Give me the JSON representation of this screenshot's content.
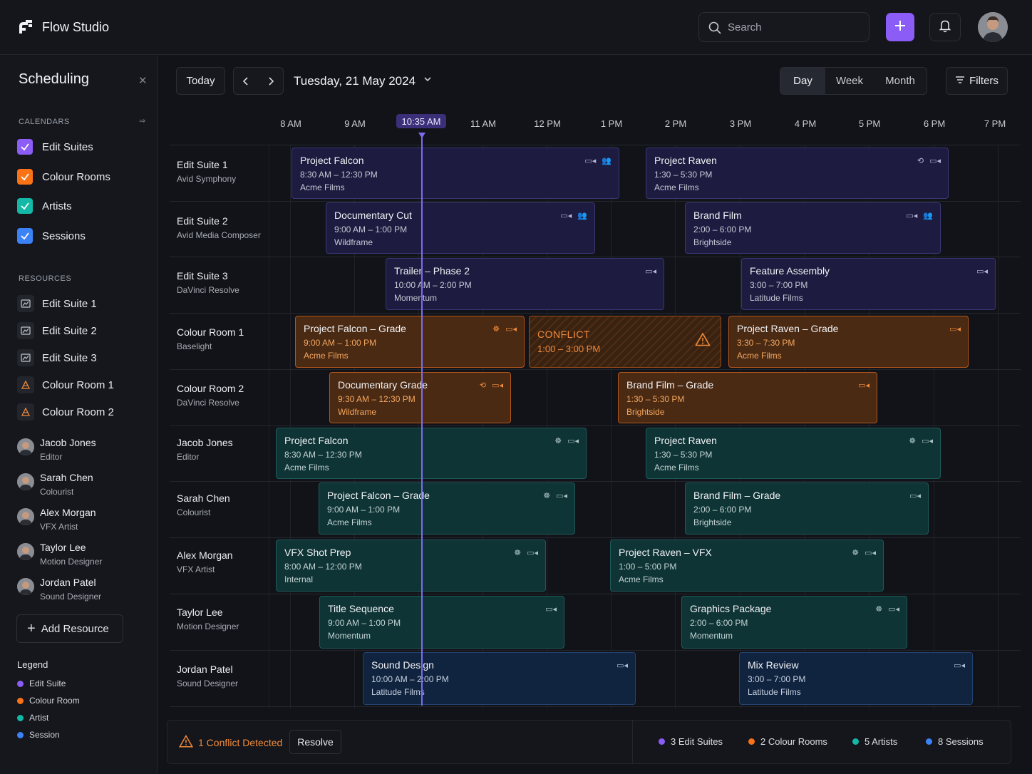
{
  "app": {
    "name": "Flow Studio"
  },
  "search": {
    "placeholder": "Search"
  },
  "sidebar": {
    "title": "Scheduling",
    "calendars_label": "CALENDARS",
    "calendars": [
      {
        "label": "Edit Suites",
        "color": "#8b5cf6"
      },
      {
        "label": "Colour Rooms",
        "color": "#f97316"
      },
      {
        "label": "Artists",
        "color": "#14b8a6"
      },
      {
        "label": "Sessions",
        "color": "#3b82f6"
      }
    ],
    "resources_label": "RESOURCES",
    "resources": [
      {
        "label": "Edit Suite 1",
        "icon": "film-icon"
      },
      {
        "label": "Edit Suite 2",
        "icon": "film-icon"
      },
      {
        "label": "Edit Suite 3",
        "icon": "film-icon"
      },
      {
        "label": "Colour Room 1",
        "icon": "palette-icon"
      },
      {
        "label": "Colour Room 2",
        "icon": "palette-icon"
      }
    ],
    "people": [
      {
        "name": "Jacob Jones",
        "role": "Editor"
      },
      {
        "name": "Sarah Chen",
        "role": "Colourist"
      },
      {
        "name": "Alex Morgan",
        "role": "VFX Artist"
      },
      {
        "name": "Taylor Lee",
        "role": "Motion Designer"
      },
      {
        "name": "Jordan Patel",
        "role": "Sound Designer"
      }
    ],
    "add_resource": "Add Resource",
    "legend_title": "Legend",
    "legend": [
      {
        "label": "Edit Suite",
        "color": "#8b5cf6"
      },
      {
        "label": "Colour Room",
        "color": "#f97316"
      },
      {
        "label": "Artist",
        "color": "#14b8a6"
      },
      {
        "label": "Session",
        "color": "#3b82f6"
      }
    ]
  },
  "toolbar": {
    "today": "Today",
    "date": "Tuesday, 21 May 2024",
    "views": [
      "Day",
      "Week",
      "Month"
    ],
    "active_view": "Day",
    "filters": "Filters"
  },
  "timeline": {
    "hours": [
      "8 AM",
      "9 AM",
      "10:35 AM",
      "11 AM",
      "12 PM",
      "1 PM",
      "2 PM",
      "3 PM",
      "4 PM",
      "5 PM",
      "6 PM",
      "7 PM"
    ],
    "now": "10:35 AM"
  },
  "rows": [
    {
      "name": "Edit Suite 1",
      "sub": "Avid Symphony"
    },
    {
      "name": "Edit Suite 2",
      "sub": "Avid Media Composer"
    },
    {
      "name": "Edit Suite 3",
      "sub": "DaVinci Resolve"
    },
    {
      "name": "Colour Room 1",
      "sub": "Baselight"
    },
    {
      "name": "Colour Room 2",
      "sub": "DaVinci Resolve"
    },
    {
      "name": "Jacob Jones",
      "sub": "Editor"
    },
    {
      "name": "Sarah Chen",
      "sub": "Colourist"
    },
    {
      "name": "Alex Morgan",
      "sub": "VFX Artist"
    },
    {
      "name": "Taylor Lee",
      "sub": "Motion Designer"
    },
    {
      "name": "Jordan Patel",
      "sub": "Sound Designer"
    }
  ],
  "events": [
    {
      "title": "Project Falcon",
      "time": "8:30 AM – 12:30 PM",
      "client": "Acme Films"
    },
    {
      "title": "Project Raven",
      "time": "1:30 – 5:30 PM",
      "client": "Acme Films"
    },
    {
      "title": "Documentary Cut",
      "time": "9:00 AM – 1:00 PM",
      "client": "Wildframe"
    },
    {
      "title": "Brand Film",
      "time": "2:00 – 6:00 PM",
      "client": "Brightside"
    },
    {
      "title": "Trailer – Phase 2",
      "time": "10:00 AM – 2:00 PM",
      "client": "Momentum"
    },
    {
      "title": "Feature Assembly",
      "time": "3:00 – 7:00 PM",
      "client": "Latitude Films"
    },
    {
      "title": "Project Falcon – Grade",
      "time": "9:00 AM – 1:00 PM",
      "client": "Acme Films"
    },
    {
      "title": "CONFLICT",
      "time": "1:00 – 3:00 PM",
      "client": ""
    },
    {
      "title": "Project Raven – Grade",
      "time": "3:30 – 7:30 PM",
      "client": "Acme Films"
    },
    {
      "title": "Documentary Grade",
      "time": "9:30 AM – 12:30 PM",
      "client": "Wildframe"
    },
    {
      "title": "Brand Film – Grade",
      "time": "1:30 – 5:30 PM",
      "client": "Brightside"
    },
    {
      "title": "Project Falcon",
      "time": "8:30 AM – 12:30 PM",
      "client": "Acme Films"
    },
    {
      "title": "Project Raven",
      "time": "1:30 – 5:30 PM",
      "client": "Acme Films"
    },
    {
      "title": "Project Falcon – Grade",
      "time": "9:00 AM – 1:00 PM",
      "client": "Acme Films"
    },
    {
      "title": "Brand Film – Grade",
      "time": "2:00 – 6:00 PM",
      "client": "Brightside"
    },
    {
      "title": "VFX Shot Prep",
      "time": "8:00 AM – 12:00 PM",
      "client": "Internal"
    },
    {
      "title": "Project Raven – VFX",
      "time": "1:00 – 5:00 PM",
      "client": "Acme Films"
    },
    {
      "title": "Title Sequence",
      "time": "9:00 AM – 1:00 PM",
      "client": "Momentum"
    },
    {
      "title": "Graphics Package",
      "time": "2:00 – 6:00 PM",
      "client": "Momentum"
    },
    {
      "title": "Sound Design",
      "time": "10:00 AM – 2:00 PM",
      "client": "Latitude Films"
    },
    {
      "title": "Mix Review",
      "time": "3:00 – 7:00 PM",
      "client": "Latitude Films"
    }
  ],
  "footer": {
    "conflict_text": "1 Conflict Detected",
    "resolve": "Resolve",
    "stats": [
      {
        "label": "3 Edit Suites",
        "color": "#8b5cf6"
      },
      {
        "label": "2 Colour Rooms",
        "color": "#f97316"
      },
      {
        "label": "5 Artists",
        "color": "#14b8a6"
      },
      {
        "label": "8 Sessions",
        "color": "#3b82f6"
      }
    ]
  }
}
